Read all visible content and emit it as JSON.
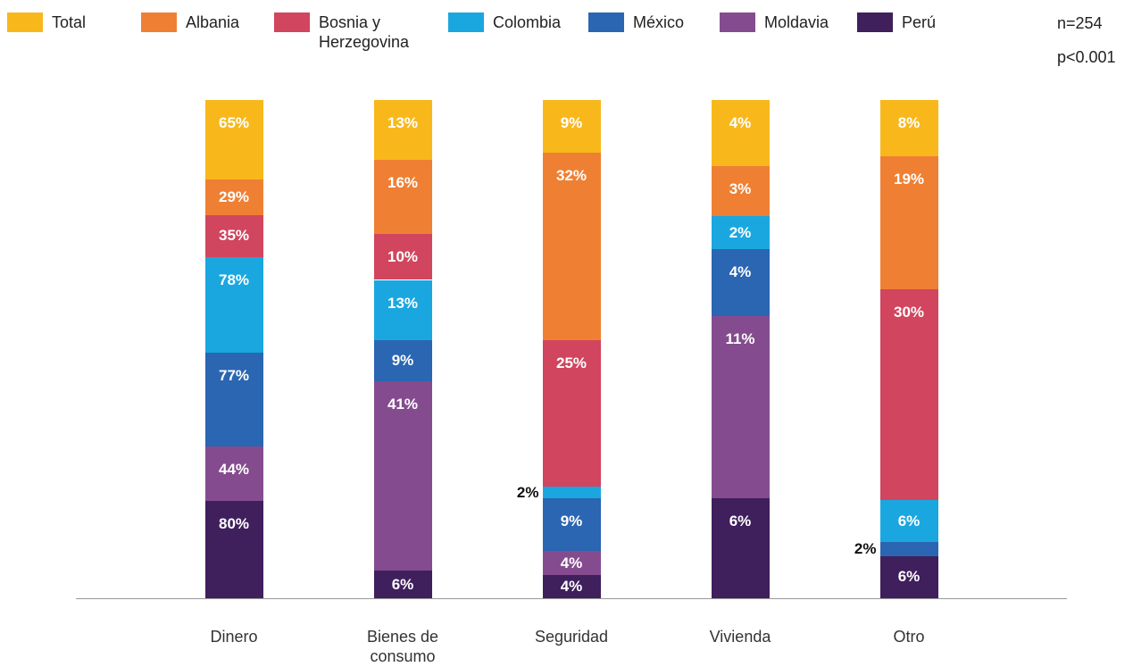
{
  "chart_data": {
    "type": "stacked_bar_100",
    "categories": [
      "Dinero",
      "Bienes de consumo",
      "Seguridad",
      "Vivienda",
      "Otro"
    ],
    "series": [
      {
        "name": "Total",
        "color": "#f8b81c",
        "values": [
          65,
          13,
          9,
          4,
          8
        ]
      },
      {
        "name": "Albania",
        "color": "#ef8033",
        "values": [
          29,
          16,
          32,
          3,
          19
        ]
      },
      {
        "name": "Bosnia y Herzegovina",
        "color": "#d1455e",
        "values": [
          35,
          10,
          25,
          0,
          30
        ]
      },
      {
        "name": "Colombia",
        "color": "#1aa7e0",
        "values": [
          78,
          13,
          2,
          2,
          6
        ]
      },
      {
        "name": "México",
        "color": "#2a66b1",
        "values": [
          77,
          9,
          9,
          4,
          2
        ]
      },
      {
        "name": "Moldavia",
        "color": "#844c8e",
        "values": [
          44,
          41,
          4,
          11,
          0
        ]
      },
      {
        "name": "Perú",
        "color": "#3f1f5c",
        "values": [
          80,
          6,
          4,
          6,
          6
        ]
      }
    ],
    "value_labels": [
      [
        "65%",
        "13%",
        "9%",
        "4%",
        "8%"
      ],
      [
        "29%",
        "16%",
        "32%",
        "3%",
        "19%"
      ],
      [
        "35%",
        "10%",
        "25%",
        null,
        "30%"
      ],
      [
        "78%",
        "13%",
        "2%",
        "2%",
        "6%"
      ],
      [
        "77%",
        "9%",
        "9%",
        "4%",
        "2%"
      ],
      [
        "44%",
        "41%",
        "4%",
        "11%",
        null
      ],
      [
        "80%",
        "6%",
        "4%",
        "6%",
        "6%"
      ]
    ],
    "annotations": [
      "n=254",
      "p<0.001"
    ]
  }
}
